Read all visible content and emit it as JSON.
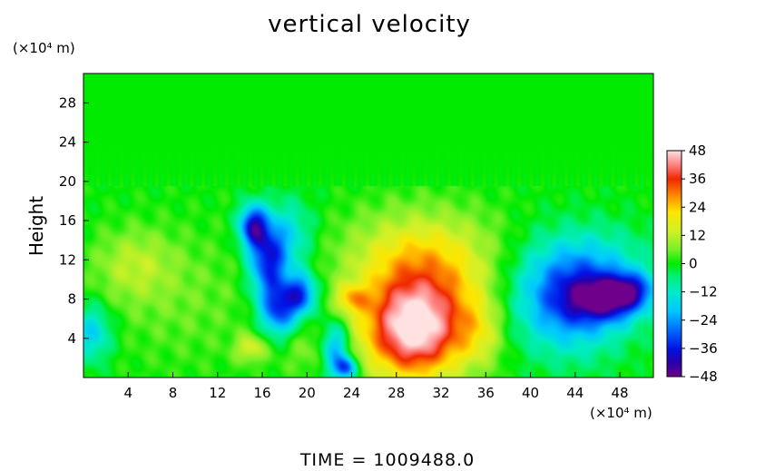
{
  "chart_data": {
    "type": "heatmap",
    "title": "vertical velocity",
    "xlabel": "",
    "ylabel": "Height",
    "x_unit_label": "(×10⁴ m)",
    "y_unit_label": "(×10⁴ m)",
    "xlim": [
      0,
      51
    ],
    "ylim": [
      0,
      31
    ],
    "x_ticks": [
      4,
      8,
      12,
      16,
      20,
      24,
      28,
      32,
      36,
      40,
      44,
      48
    ],
    "y_ticks": [
      4,
      8,
      12,
      16,
      20,
      24,
      28
    ],
    "colorbar": {
      "range": [
        -48,
        48
      ],
      "ticks": [
        48,
        36,
        24,
        12,
        0,
        -12,
        -24,
        -36,
        -48
      ]
    },
    "background_value": 0,
    "features": [
      {
        "x": 29.5,
        "y": 4.5,
        "sx": 3.0,
        "sy": 3.4,
        "value": 40
      },
      {
        "x": 30.5,
        "y": 9.0,
        "sx": 4.5,
        "sy": 4.5,
        "value": 22
      },
      {
        "x": 30.0,
        "y": 13.0,
        "sx": 5.0,
        "sy": 3.0,
        "value": 8
      },
      {
        "x": 24.0,
        "y": 8.0,
        "sx": 1.0,
        "sy": 1.0,
        "value": 16
      },
      {
        "x": 35.5,
        "y": 4.5,
        "sx": 1.5,
        "sy": 2.5,
        "value": 10
      },
      {
        "x": 4.5,
        "y": 11.5,
        "sx": 2.5,
        "sy": 2.5,
        "value": 10
      },
      {
        "x": 9.0,
        "y": 8.0,
        "sx": 5.0,
        "sy": 5.0,
        "value": 5
      },
      {
        "x": 15.2,
        "y": 15.5,
        "sx": 0.9,
        "sy": 1.5,
        "value": -36
      },
      {
        "x": 16.5,
        "y": 12.0,
        "sx": 1.2,
        "sy": 2.5,
        "value": -34
      },
      {
        "x": 17.5,
        "y": 7.0,
        "sx": 1.2,
        "sy": 2.0,
        "value": -32
      },
      {
        "x": 19.5,
        "y": 8.5,
        "sx": 1.0,
        "sy": 1.5,
        "value": -30
      },
      {
        "x": 22.5,
        "y": 3.0,
        "sx": 0.9,
        "sy": 2.0,
        "value": -26
      },
      {
        "x": 23.5,
        "y": 1.0,
        "sx": 0.7,
        "sy": 0.8,
        "value": -30
      },
      {
        "x": 18.5,
        "y": 14.5,
        "sx": 1.5,
        "sy": 2.5,
        "value": -14
      },
      {
        "x": 43.5,
        "y": 7.5,
        "sx": 3.5,
        "sy": 3.5,
        "value": -28
      },
      {
        "x": 47.0,
        "y": 8.0,
        "sx": 2.2,
        "sy": 1.5,
        "value": -30
      },
      {
        "x": 45.0,
        "y": 11.0,
        "sx": 4.0,
        "sy": 3.0,
        "value": -14
      },
      {
        "x": 49.0,
        "y": 9.0,
        "sx": 1.5,
        "sy": 1.2,
        "value": -20
      },
      {
        "x": 0.8,
        "y": 4.5,
        "sx": 1.2,
        "sy": 2.0,
        "value": -18
      },
      {
        "x": 15.0,
        "y": 3.0,
        "sx": 1.0,
        "sy": 1.0,
        "value": 14
      },
      {
        "x": 20.0,
        "y": 3.0,
        "sx": 2.0,
        "sy": 2.0,
        "value": 6
      }
    ]
  },
  "footer": {
    "time_label": "TIME  =  1009488.0"
  }
}
